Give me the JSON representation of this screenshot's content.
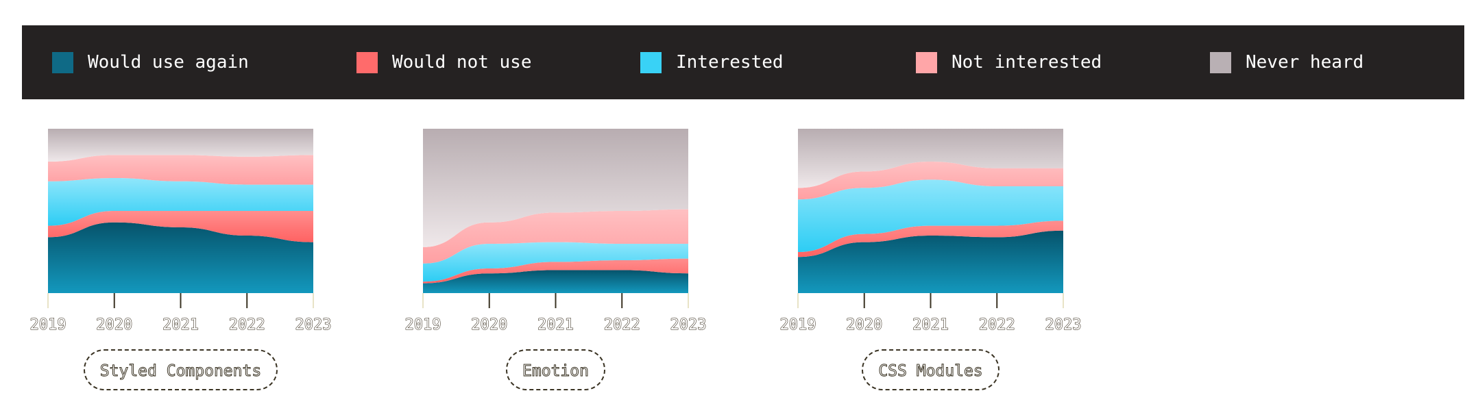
{
  "legend": [
    {
      "label": "Would use again",
      "color": "#0f6a86"
    },
    {
      "label": "Would not use",
      "color": "#ff6b6b"
    },
    {
      "label": "Interested",
      "color": "#39d2f6"
    },
    {
      "label": "Not interested",
      "color": "#ffa6a8"
    },
    {
      "label": "Never heard",
      "color": "#b9b0b4"
    }
  ],
  "chart_data": [
    {
      "type": "area",
      "title": "Styled Components",
      "x": [
        "2019",
        "2020",
        "2021",
        "2022",
        "2023"
      ],
      "stacked_percent": true,
      "ylim": [
        0,
        100
      ],
      "series": [
        {
          "name": "Would use again",
          "values": [
            34,
            43,
            40,
            35,
            31
          ]
        },
        {
          "name": "Would not use",
          "values": [
            7,
            7,
            10,
            15,
            19
          ]
        },
        {
          "name": "Interested",
          "values": [
            27,
            20,
            18,
            16,
            16
          ]
        },
        {
          "name": "Not interested",
          "values": [
            12,
            14,
            16,
            17,
            18
          ]
        },
        {
          "name": "Never heard",
          "values": [
            20,
            16,
            16,
            17,
            16
          ]
        }
      ]
    },
    {
      "type": "area",
      "title": "Emotion",
      "x": [
        "2019",
        "2020",
        "2021",
        "2022",
        "2023"
      ],
      "stacked_percent": true,
      "ylim": [
        0,
        100
      ],
      "series": [
        {
          "name": "Would use again",
          "values": [
            6,
            12,
            14,
            14,
            12
          ]
        },
        {
          "name": "Would not use",
          "values": [
            1,
            3,
            5,
            6,
            9
          ]
        },
        {
          "name": "Interested",
          "values": [
            11,
            15,
            12,
            10,
            9
          ]
        },
        {
          "name": "Not interested",
          "values": [
            10,
            13,
            18,
            20,
            21
          ]
        },
        {
          "name": "Never heard",
          "values": [
            72,
            57,
            51,
            50,
            49
          ]
        }
      ]
    },
    {
      "type": "area",
      "title": "CSS Modules",
      "x": [
        "2019",
        "2020",
        "2021",
        "2022",
        "2023"
      ],
      "stacked_percent": true,
      "ylim": [
        0,
        100
      ],
      "series": [
        {
          "name": "Would use again",
          "values": [
            22,
            31,
            35,
            34,
            38
          ]
        },
        {
          "name": "Would not use",
          "values": [
            3,
            5,
            6,
            7,
            6
          ]
        },
        {
          "name": "Interested",
          "values": [
            32,
            28,
            28,
            24,
            21
          ]
        },
        {
          "name": "Not interested",
          "values": [
            7,
            10,
            11,
            11,
            11
          ]
        },
        {
          "name": "Never heard",
          "values": [
            36,
            26,
            20,
            24,
            24
          ]
        }
      ]
    }
  ]
}
